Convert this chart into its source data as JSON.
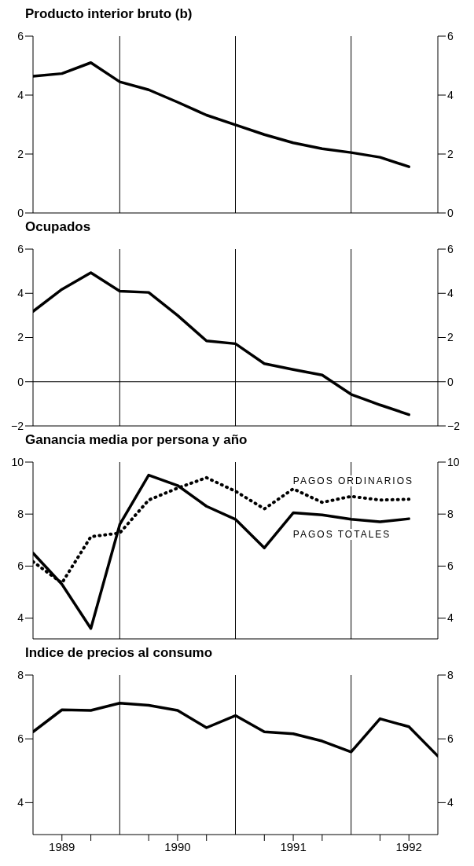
{
  "chart_data": [
    {
      "type": "line",
      "title": "Producto interior bruto (b)",
      "x": [
        1989.25,
        1989.5,
        1989.75,
        1990,
        1990.25,
        1990.5,
        1990.75,
        1991,
        1991.25,
        1991.5,
        1991.75,
        1992,
        1992.25,
        1992.5
      ],
      "series": [
        {
          "color": "#000000",
          "values": [
            4.64,
            4.73,
            5.1,
            4.45,
            4.18,
            3.76,
            3.32,
            2.99,
            2.66,
            2.38,
            2.18,
            2.05,
            1.89,
            1.57
          ]
        }
      ],
      "xlim": [
        1989.25,
        1992.75
      ],
      "ylim": [
        0,
        6
      ],
      "yticks": [
        0,
        2,
        4,
        6
      ],
      "y2lim": [
        0,
        6
      ],
      "y2ticks": [
        0,
        2,
        4,
        6
      ],
      "tick_labels": "y",
      "grid": false,
      "marker": "none",
      "ref_lines": [
        {
          "axis": "x",
          "value": 1990,
          "color": "#000000"
        },
        {
          "axis": "x",
          "value": 1991,
          "color": "#000000"
        },
        {
          "axis": "x",
          "value": 1992,
          "color": "#000000"
        }
      ]
    },
    {
      "type": "line",
      "title": "Ocupados",
      "x": [
        1989.25,
        1989.5,
        1989.75,
        1990,
        1990.25,
        1990.5,
        1990.75,
        1991,
        1991.25,
        1991.5,
        1991.75,
        1992,
        1992.25,
        1992.5
      ],
      "series": [
        {
          "color": "#000000",
          "values": [
            3.18,
            4.18,
            4.93,
            4.1,
            4.04,
            3.0,
            1.85,
            1.72,
            0.82,
            0.55,
            0.3,
            -0.57,
            -1.05,
            -1.49
          ]
        }
      ],
      "xlim": [
        1989.25,
        1992.75
      ],
      "ylim": [
        -2,
        6
      ],
      "yticks": [
        -2,
        0,
        2,
        4,
        6
      ],
      "y2lim": [
        -2,
        6
      ],
      "y2ticks": [
        -2,
        0,
        2,
        4,
        6
      ],
      "tick_labels": "y",
      "grid": false,
      "marker": "none",
      "ref_lines": [
        {
          "axis": "y",
          "value": 0,
          "color": "#000000"
        },
        {
          "axis": "x",
          "value": 1990,
          "color": "#000000"
        },
        {
          "axis": "x",
          "value": 1991,
          "color": "#000000"
        },
        {
          "axis": "x",
          "value": 1992,
          "color": "#000000"
        }
      ]
    },
    {
      "type": "line",
      "title": "Ganancia media por persona y año",
      "x": [
        1989.25,
        1989.5,
        1989.75,
        1990,
        1990.25,
        1990.5,
        1990.75,
        1991,
        1991.25,
        1991.5,
        1991.75,
        1992,
        1992.25,
        1992.5
      ],
      "series": [
        {
          "name": "PAGOS ORDINARIOS",
          "color": "#000000",
          "line_style": "dotted",
          "values": [
            6.17,
            5.35,
            7.13,
            7.27,
            8.54,
            9.0,
            9.4,
            8.88,
            8.2,
            8.97,
            8.45,
            8.68,
            8.54,
            8.57
          ]
        },
        {
          "name": "PAGOS TOTALES",
          "color": "#000000",
          "line_style": "solid",
          "values": [
            6.5,
            5.3,
            3.6,
            7.6,
            9.5,
            9.1,
            8.3,
            7.8,
            6.7,
            8.05,
            7.97,
            7.8,
            7.7,
            7.82
          ]
        }
      ],
      "xlim": [
        1989.25,
        1992.75
      ],
      "ylim": [
        3.2,
        10
      ],
      "yticks": [
        4,
        6,
        8,
        10
      ],
      "y2lim": [
        3.2,
        10
      ],
      "y2ticks": [
        4,
        6,
        8,
        10
      ],
      "tick_labels": "y",
      "grid": false,
      "marker": "none",
      "ref_lines": [
        {
          "axis": "x",
          "value": 1990,
          "color": "#000000"
        },
        {
          "axis": "x",
          "value": 1991,
          "color": "#000000"
        },
        {
          "axis": "x",
          "value": 1992,
          "color": "#000000"
        }
      ]
    },
    {
      "type": "line",
      "title": "Indice de precios al consumo",
      "x": [
        1989.25,
        1989.5,
        1989.75,
        1990,
        1990.25,
        1990.5,
        1990.75,
        1991,
        1991.25,
        1991.5,
        1991.75,
        1992,
        1992.25,
        1992.5,
        1992.75
      ],
      "series": [
        {
          "color": "#000000",
          "values": [
            6.22,
            6.91,
            6.89,
            7.12,
            7.05,
            6.89,
            6.35,
            6.73,
            6.22,
            6.16,
            5.93,
            5.59,
            6.63,
            6.38,
            5.46
          ]
        }
      ],
      "xlim": [
        1989.25,
        1992.75
      ],
      "xticks": [
        {
          "value": 1989.5,
          "label": "1989"
        },
        {
          "value": 1989.75,
          "label": null
        },
        {
          "value": 1990.25,
          "label": null
        },
        {
          "value": 1990.5,
          "label": "1990"
        },
        {
          "value": 1990.75,
          "label": null
        },
        {
          "value": 1991.25,
          "label": null
        },
        {
          "value": 1991.5,
          "label": "1991"
        },
        {
          "value": 1991.75,
          "label": null
        },
        {
          "value": 1992.25,
          "label": null
        },
        {
          "value": 1992.5,
          "label": "1992"
        }
      ],
      "ylim": [
        3,
        8
      ],
      "yticks": [
        4,
        6,
        8
      ],
      "y2lim": [
        3,
        8
      ],
      "y2ticks": [
        4,
        6,
        8
      ],
      "grid": false,
      "marker": "none",
      "ref_lines": [
        {
          "axis": "x",
          "value": 1990,
          "color": "#000000"
        },
        {
          "axis": "x",
          "value": 1991,
          "color": "#000000"
        },
        {
          "axis": "x",
          "value": 1992,
          "color": "#000000"
        }
      ]
    }
  ]
}
